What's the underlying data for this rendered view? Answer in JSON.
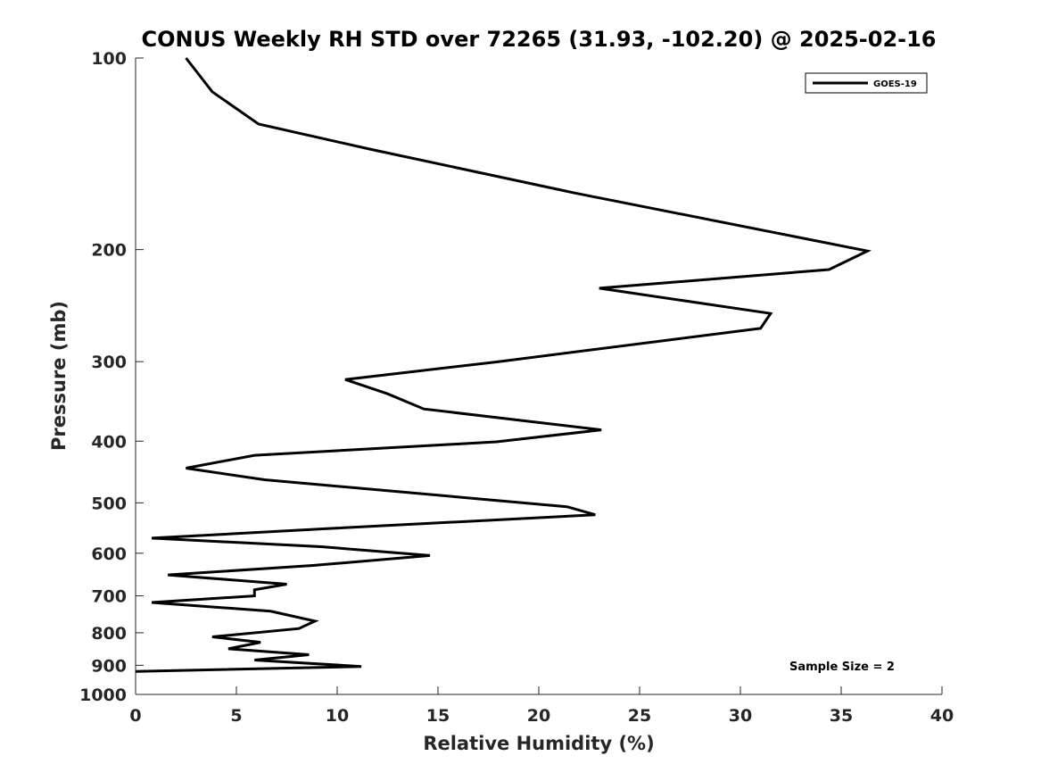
{
  "chart_data": {
    "type": "line",
    "title": "CONUS Weekly RH STD over 72265 (31.93, -102.20) @ 2025-02-16",
    "xlabel": "Relative Humidity (%)",
    "ylabel": "Pressure (mb)",
    "xlim": [
      0,
      40
    ],
    "ylim": [
      100,
      1000
    ],
    "yscale": "log",
    "y_reversed": true,
    "x_ticks": [
      0,
      5,
      10,
      15,
      20,
      25,
      30,
      35,
      40
    ],
    "x_tick_labels": [
      "0",
      "5",
      "10",
      "15",
      "20",
      "25",
      "30",
      "35",
      "40"
    ],
    "y_ticks": [
      100,
      200,
      300,
      400,
      500,
      600,
      700,
      800,
      900,
      1000
    ],
    "y_tick_labels": [
      "100",
      "200",
      "300",
      "400",
      "500",
      "600",
      "700",
      "800",
      "900",
      "1000"
    ],
    "legend": {
      "position": "top-right",
      "entries": [
        "GOES-19"
      ]
    },
    "annotation": "Sample Size = 2",
    "series": [
      {
        "name": "GOES-19",
        "color": "#000000",
        "x": [
          2.5,
          3.8,
          6.1,
          11.6,
          21.8,
          36.3,
          34.4,
          23.0,
          31.5,
          31.0,
          18.0,
          10.4,
          12.5,
          14.3,
          23.1,
          17.9,
          5.9,
          2.5,
          6.4,
          21.4,
          22.8,
          9.5,
          0.8,
          9.2,
          14.6,
          8.8,
          1.6,
          7.5,
          5.9,
          5.9,
          0.8,
          6.7,
          8.9,
          8.1,
          3.8,
          6.2,
          4.6,
          8.6,
          5.9,
          11.2,
          0.0
        ],
        "y": [
          100,
          113,
          127,
          139,
          163,
          201,
          215,
          230,
          252,
          266,
          300,
          320,
          337,
          356,
          384,
          401,
          421,
          441,
          460,
          507,
          522,
          549,
          568,
          586,
          605,
          627,
          649,
          671,
          685,
          700,
          717,
          740,
          767,
          788,
          812,
          828,
          848,
          866,
          883,
          904,
          920
        ]
      }
    ]
  }
}
